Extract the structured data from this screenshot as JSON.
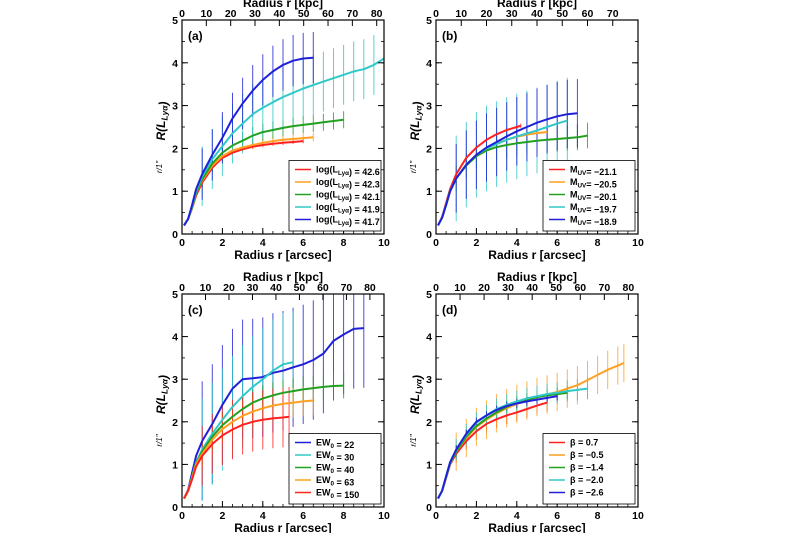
{
  "chart_data": [
    {
      "type": "line",
      "panel_label": "(a)",
      "xlabel": "Radius r [arcsec]",
      "x2label": "Radius r [kpc]",
      "ylabel": "R(L_Lyα)",
      "ylabel_sub": "r/1\"",
      "xlim": [
        0,
        10
      ],
      "ylim": [
        0,
        5
      ],
      "x2lim": [
        0,
        83
      ],
      "x_ticks": [
        0,
        2,
        4,
        6,
        8,
        10
      ],
      "x2_ticks": [
        0,
        10,
        20,
        30,
        40,
        50,
        60,
        70,
        80
      ],
      "y_ticks": [
        0,
        1,
        2,
        3,
        4,
        5
      ],
      "legend_position": "lower-right",
      "series": [
        {
          "name": "log(L_Lyα) = 42.6",
          "color": "#ff2020",
          "x": [
            0.1,
            0.3,
            0.5,
            0.7,
            1,
            1.5,
            2,
            2.5,
            3,
            3.5,
            4,
            4.5,
            5,
            5.5,
            6
          ],
          "y": [
            0.2,
            0.35,
            0.6,
            0.9,
            1.2,
            1.55,
            1.78,
            1.9,
            1.98,
            2.04,
            2.08,
            2.11,
            2.13,
            2.15,
            2.17
          ],
          "err": 0.05
        },
        {
          "name": "log(L_Lyα) = 42.3",
          "color": "#ffa020",
          "x": [
            0.1,
            0.3,
            0.5,
            0.7,
            1,
            1.5,
            2,
            2.5,
            3,
            3.5,
            4,
            4.5,
            5,
            5.5,
            6,
            6.5
          ],
          "y": [
            0.2,
            0.35,
            0.62,
            0.95,
            1.25,
            1.6,
            1.82,
            1.95,
            2.02,
            2.08,
            2.13,
            2.17,
            2.2,
            2.22,
            2.24,
            2.26
          ],
          "err": 0.1
        },
        {
          "name": "log(L_Lyα) = 42.1",
          "color": "#22a022",
          "x": [
            0.1,
            0.3,
            0.5,
            0.7,
            1,
            1.5,
            2,
            2.5,
            3,
            3.5,
            4,
            4.5,
            5,
            5.5,
            6,
            6.5,
            7,
            7.5,
            8
          ],
          "y": [
            0.2,
            0.35,
            0.62,
            0.95,
            1.28,
            1.65,
            1.9,
            2.07,
            2.18,
            2.3,
            2.38,
            2.43,
            2.48,
            2.52,
            2.55,
            2.58,
            2.61,
            2.64,
            2.67
          ],
          "err": 0.2
        },
        {
          "name": "log(L_Lyα) = 41.9",
          "color": "#30c8c8",
          "x": [
            0.1,
            0.3,
            0.5,
            0.7,
            1,
            1.5,
            2,
            2.5,
            3,
            3.5,
            4,
            4.5,
            5,
            5.5,
            6,
            6.5,
            7,
            7.5,
            8,
            8.5,
            9,
            9.5,
            10
          ],
          "y": [
            0.2,
            0.35,
            0.65,
            1,
            1.35,
            1.75,
            2.05,
            2.35,
            2.58,
            2.8,
            2.95,
            3.08,
            3.2,
            3.3,
            3.4,
            3.48,
            3.56,
            3.64,
            3.72,
            3.8,
            3.85,
            3.95,
            4.1
          ],
          "err": 0.7
        },
        {
          "name": "log(L_Lyα) = 41.7",
          "color": "#2020d8",
          "x": [
            0.1,
            0.3,
            0.5,
            0.7,
            1,
            1.5,
            2,
            2.5,
            3,
            3.5,
            4,
            4.5,
            5,
            5.5,
            6,
            6.5
          ],
          "y": [
            0.2,
            0.35,
            0.68,
            1.05,
            1.4,
            1.85,
            2.25,
            2.7,
            3.05,
            3.35,
            3.6,
            3.8,
            3.95,
            4.05,
            4.1,
            4.12
          ],
          "err": 0.6
        }
      ]
    },
    {
      "type": "line",
      "panel_label": "(b)",
      "xlabel": "Radius r [arcsec]",
      "x2label": "Radius r [kpc]",
      "ylabel": "R(L_Lyα)",
      "ylabel_sub": "r/1\"",
      "xlim": [
        0,
        10
      ],
      "ylim": [
        0,
        5
      ],
      "x2lim": [
        0,
        80
      ],
      "x_ticks": [
        0,
        2,
        4,
        6,
        8,
        10
      ],
      "x2_ticks": [
        0,
        10,
        20,
        30,
        40,
        50,
        60,
        70
      ],
      "y_ticks": [
        0,
        1,
        2,
        3,
        4,
        5
      ],
      "legend_position": "lower-right",
      "series": [
        {
          "name": "M_UV= −21.1",
          "color": "#ff2020",
          "x": [
            0.1,
            0.3,
            0.5,
            0.7,
            1,
            1.5,
            2,
            2.5,
            3,
            3.5,
            4,
            4.2
          ],
          "y": [
            0.2,
            0.4,
            0.72,
            1.05,
            1.4,
            1.78,
            2.02,
            2.2,
            2.33,
            2.43,
            2.5,
            2.53
          ],
          "err": 0.05
        },
        {
          "name": "M_UV= −20.5",
          "color": "#ffa020",
          "x": [
            0.1,
            0.3,
            0.5,
            0.7,
            1,
            1.5,
            2,
            2.5,
            3,
            3.5,
            4,
            4.5,
            5,
            5.5
          ],
          "y": [
            0.2,
            0.38,
            0.68,
            1,
            1.3,
            1.62,
            1.85,
            2.0,
            2.12,
            2.2,
            2.27,
            2.32,
            2.36,
            2.38
          ],
          "err": 0.15
        },
        {
          "name": "M_UV= −20.1",
          "color": "#22a022",
          "x": [
            0.1,
            0.3,
            0.5,
            0.7,
            1,
            1.5,
            2,
            2.5,
            3,
            3.5,
            4,
            4.5,
            5,
            5.5,
            6,
            6.5,
            7,
            7.5
          ],
          "y": [
            0.2,
            0.38,
            0.68,
            1,
            1.3,
            1.6,
            1.82,
            1.95,
            2.03,
            2.08,
            2.12,
            2.15,
            2.18,
            2.2,
            2.22,
            2.24,
            2.26,
            2.3
          ],
          "err": 0.3
        },
        {
          "name": "M_UV= −19.7",
          "color": "#30c8c8",
          "x": [
            0.1,
            0.3,
            0.5,
            0.7,
            1,
            1.5,
            2,
            2.5,
            3,
            3.5,
            4,
            4.5,
            5,
            5.5,
            6,
            6.5
          ],
          "y": [
            0.2,
            0.38,
            0.68,
            1,
            1.3,
            1.62,
            1.85,
            2.0,
            2.1,
            2.2,
            2.28,
            2.35,
            2.42,
            2.5,
            2.58,
            2.65
          ],
          "err": 1.0
        },
        {
          "name": "M_UV= −18.9",
          "color": "#2020d8",
          "x": [
            0.1,
            0.3,
            0.5,
            0.7,
            1,
            1.5,
            2,
            2.5,
            3,
            3.5,
            4,
            4.5,
            5,
            5.5,
            6,
            6.5,
            7
          ],
          "y": [
            0.2,
            0.38,
            0.68,
            1,
            1.3,
            1.62,
            1.85,
            2.02,
            2.15,
            2.28,
            2.4,
            2.5,
            2.6,
            2.68,
            2.75,
            2.8,
            2.82
          ],
          "err": 0.8
        }
      ]
    },
    {
      "type": "line",
      "panel_label": "(c)",
      "xlabel": "Radius r [arcsec]",
      "x2label": "Radius r [kpc]",
      "ylabel": "R(L_Lyα)",
      "ylabel_sub": "r/1\"",
      "xlim": [
        0,
        10
      ],
      "ylim": [
        0,
        5
      ],
      "x2lim": [
        0,
        86
      ],
      "x_ticks": [
        0,
        2,
        4,
        6,
        8,
        10
      ],
      "x2_ticks": [
        0,
        10,
        20,
        30,
        40,
        50,
        60,
        70,
        80
      ],
      "y_ticks": [
        0,
        1,
        2,
        3,
        4,
        5
      ],
      "legend_position": "lower-right",
      "series": [
        {
          "name": "EW_0 = 22",
          "color": "#2020d8",
          "x": [
            0.1,
            0.3,
            0.5,
            0.7,
            1,
            1.5,
            2,
            2.5,
            3,
            3.5,
            4,
            4.5,
            5,
            5.5,
            6,
            6.5,
            7,
            7.5,
            8,
            8.5,
            9
          ],
          "y": [
            0.2,
            0.4,
            0.8,
            1.2,
            1.55,
            1.95,
            2.4,
            2.78,
            3.0,
            3.02,
            3.05,
            3.15,
            3.2,
            3.28,
            3.35,
            3.45,
            3.6,
            3.9,
            4.05,
            4.18,
            4.2
          ],
          "err": 1.4
        },
        {
          "name": "EW_0 = 30",
          "color": "#30c8c8",
          "x": [
            0.1,
            0.3,
            0.5,
            0.7,
            1,
            1.5,
            2,
            2.5,
            3,
            3.5,
            4,
            4.5,
            5,
            5.5
          ],
          "y": [
            0.2,
            0.38,
            0.72,
            1.05,
            1.35,
            1.72,
            2.05,
            2.35,
            2.6,
            2.82,
            3.0,
            3.2,
            3.35,
            3.4
          ],
          "err": 1.2
        },
        {
          "name": "EW_0 = 40",
          "color": "#22a022",
          "x": [
            0.1,
            0.3,
            0.5,
            0.7,
            1,
            1.5,
            2,
            2.5,
            3,
            3.5,
            4,
            4.5,
            5,
            5.5,
            6,
            6.5,
            7,
            7.5,
            8
          ],
          "y": [
            0.2,
            0.38,
            0.7,
            1.02,
            1.3,
            1.65,
            1.92,
            2.12,
            2.3,
            2.45,
            2.55,
            2.62,
            2.68,
            2.72,
            2.76,
            2.79,
            2.82,
            2.84,
            2.85
          ],
          "err": 0.3
        },
        {
          "name": "EW_0 = 63",
          "color": "#ffa020",
          "x": [
            0.1,
            0.3,
            0.5,
            0.7,
            1,
            1.5,
            2,
            2.5,
            3,
            3.5,
            4,
            4.5,
            5,
            5.5,
            6,
            6.5
          ],
          "y": [
            0.2,
            0.38,
            0.68,
            1,
            1.25,
            1.58,
            1.83,
            2.0,
            2.14,
            2.24,
            2.32,
            2.38,
            2.42,
            2.45,
            2.48,
            2.5
          ],
          "err": 0.35
        },
        {
          "name": "EW_0 = 150",
          "color": "#ff2020",
          "x": [
            0.1,
            0.3,
            0.5,
            0.7,
            1,
            1.5,
            2,
            2.5,
            3,
            3.5,
            4,
            4.5,
            5,
            5.3
          ],
          "y": [
            0.2,
            0.38,
            0.65,
            0.95,
            1.2,
            1.48,
            1.68,
            1.82,
            1.93,
            2.0,
            2.05,
            2.08,
            2.1,
            2.12
          ],
          "err": 0.7
        }
      ]
    },
    {
      "type": "line",
      "panel_label": "(d)",
      "xlabel": "Radius r [arcsec]",
      "x2label": "Radius r [kpc]",
      "ylabel": "R(L_Lyα)",
      "ylabel_sub": "r/1\"",
      "xlim": [
        0,
        10
      ],
      "ylim": [
        0,
        5
      ],
      "x2lim": [
        0,
        84
      ],
      "x_ticks": [
        0,
        2,
        4,
        6,
        8,
        10
      ],
      "x2_ticks": [
        0,
        10,
        20,
        30,
        40,
        50,
        60,
        70,
        80
      ],
      "y_ticks": [
        0,
        1,
        2,
        3,
        4,
        5
      ],
      "legend_position": "lower-right",
      "series": [
        {
          "name": "β =  0.7",
          "color": "#ff2020",
          "x": [
            0.1,
            0.3,
            0.5,
            0.7,
            1,
            1.5,
            2,
            2.5,
            3,
            3.5,
            4,
            4.5,
            5,
            5.5
          ],
          "y": [
            0.2,
            0.38,
            0.68,
            1,
            1.25,
            1.55,
            1.78,
            1.95,
            2.06,
            2.15,
            2.22,
            2.3,
            2.38,
            2.45
          ],
          "err": 0.2
        },
        {
          "name": "β = −0.5",
          "color": "#ffa020",
          "x": [
            0.1,
            0.3,
            0.5,
            0.7,
            1,
            1.5,
            2,
            2.5,
            3,
            3.5,
            4,
            4.5,
            5,
            5.5,
            6,
            6.5,
            7,
            7.5,
            8,
            8.5,
            9,
            9.3
          ],
          "y": [
            0.2,
            0.38,
            0.7,
            1.02,
            1.3,
            1.62,
            1.88,
            2.05,
            2.2,
            2.32,
            2.42,
            2.5,
            2.58,
            2.64,
            2.7,
            2.78,
            2.86,
            2.98,
            3.1,
            3.22,
            3.32,
            3.38
          ],
          "err": 0.45
        },
        {
          "name": "β = −1.4",
          "color": "#22a022",
          "x": [
            0.1,
            0.3,
            0.5,
            0.7,
            1,
            1.5,
            2,
            2.5,
            3,
            3.5,
            4,
            4.5,
            5,
            5.5,
            6,
            6.5
          ],
          "y": [
            0.2,
            0.38,
            0.7,
            1.02,
            1.3,
            1.65,
            1.9,
            2.08,
            2.22,
            2.35,
            2.45,
            2.52,
            2.58,
            2.62,
            2.65,
            2.68
          ],
          "err": 0.15
        },
        {
          "name": "β = −2.0",
          "color": "#30c8c8",
          "x": [
            0.1,
            0.3,
            0.5,
            0.7,
            1,
            1.5,
            2,
            2.5,
            3,
            3.5,
            4,
            4.5,
            5,
            5.5,
            6,
            6.5,
            7,
            7.5
          ],
          "y": [
            0.2,
            0.38,
            0.72,
            1.05,
            1.35,
            1.7,
            1.98,
            2.15,
            2.3,
            2.4,
            2.48,
            2.55,
            2.6,
            2.65,
            2.68,
            2.72,
            2.75,
            2.78
          ],
          "err": 0.25
        },
        {
          "name": "β = −2.6",
          "color": "#2020d8",
          "x": [
            0.1,
            0.3,
            0.5,
            0.7,
            1,
            1.5,
            2,
            2.5,
            3,
            3.5,
            4,
            4.5,
            5,
            5.5,
            6
          ],
          "y": [
            0.2,
            0.38,
            0.72,
            1.05,
            1.35,
            1.72,
            2.0,
            2.15,
            2.28,
            2.37,
            2.43,
            2.48,
            2.52,
            2.56,
            2.6
          ],
          "err": 0.1
        }
      ]
    }
  ]
}
